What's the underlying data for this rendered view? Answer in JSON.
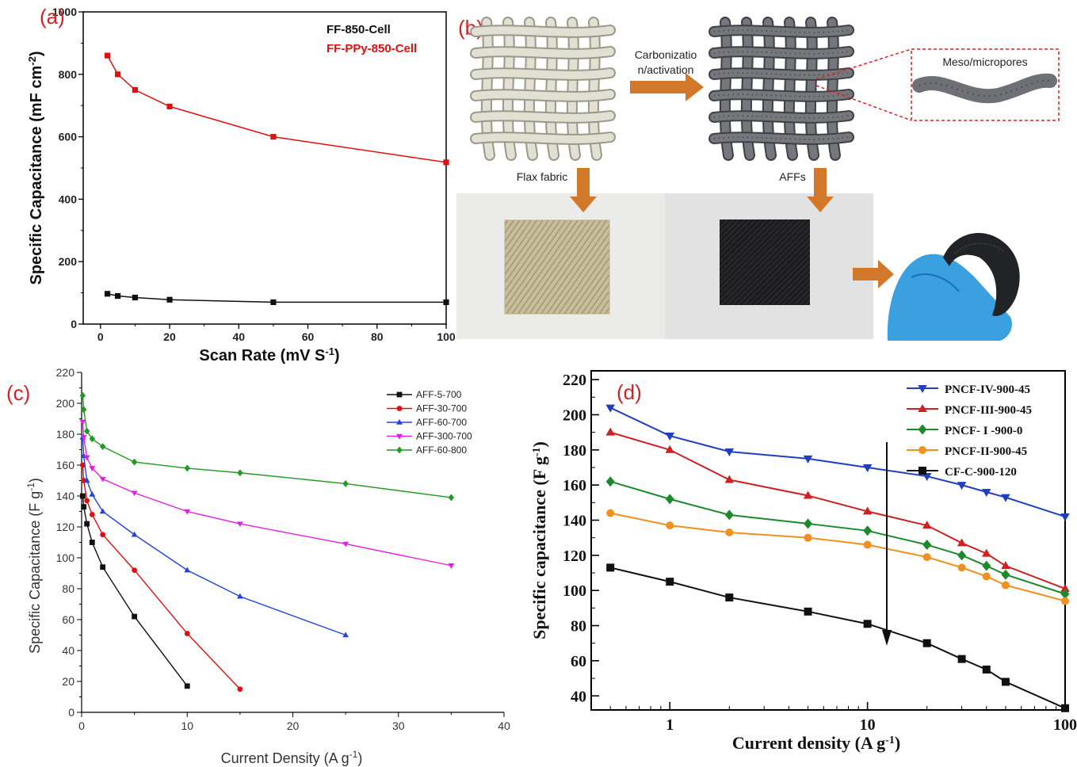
{
  "panels": {
    "a": "(a)",
    "b": "(b)",
    "c": "(c)",
    "d": "(d)"
  },
  "chart_data": [
    {
      "id": "a",
      "type": "line",
      "xlabel": "Scan Rate (mV S",
      "xlabel_sup": "-1",
      "xlabel_tail": ")",
      "ylabel": "Specific Capacitance (mF cm",
      "ylabel_sup": "-2",
      "ylabel_tail": ")",
      "xlim": [
        -5,
        100
      ],
      "ylim": [
        0,
        1000
      ],
      "xticks": [
        0,
        20,
        40,
        60,
        80,
        100
      ],
      "yticks": [
        0,
        200,
        400,
        600,
        800,
        1000
      ],
      "legend_position": "top-right",
      "grid": false,
      "series": [
        {
          "name": "FF-850-Cell",
          "color": "#111111",
          "marker": "square",
          "x": [
            2,
            5,
            10,
            20,
            50,
            100
          ],
          "y": [
            97,
            90,
            85,
            78,
            70,
            70
          ]
        },
        {
          "name": "FF-PPy-850-Cell",
          "color": "#e01010",
          "marker": "square",
          "x": [
            2,
            5,
            10,
            20,
            50,
            100
          ],
          "y": [
            860,
            800,
            750,
            697,
            600,
            518
          ]
        }
      ]
    },
    {
      "id": "c",
      "type": "line",
      "xlabel": "Current Density (A g",
      "xlabel_sup": "-1",
      "xlabel_tail": ")",
      "ylabel": "Specific Capacitance (F g",
      "ylabel_sup": "-1",
      "ylabel_tail": ")",
      "xlim": [
        0,
        40
      ],
      "ylim": [
        0,
        220
      ],
      "xticks": [
        0,
        10,
        20,
        30,
        40
      ],
      "yticks": [
        0,
        20,
        40,
        60,
        80,
        100,
        120,
        140,
        160,
        180,
        200,
        220
      ],
      "legend_position": "top-right",
      "grid": false,
      "series": [
        {
          "name": "AFF-5-700",
          "color": "#111111",
          "marker": "square",
          "x": [
            0.1,
            0.2,
            0.5,
            1,
            2,
            5,
            10
          ],
          "y": [
            140,
            133,
            122,
            110,
            94,
            62,
            17
          ]
        },
        {
          "name": "AFF-30-700",
          "color": "#e01010",
          "marker": "circle",
          "x": [
            0.1,
            0.2,
            0.5,
            1,
            2,
            5,
            10,
            15
          ],
          "y": [
            160,
            150,
            137,
            128,
            115,
            92,
            51,
            15
          ]
        },
        {
          "name": "AFF-60-700",
          "color": "#2244dd",
          "marker": "triangle",
          "x": [
            0.1,
            0.2,
            0.5,
            1,
            2,
            5,
            10,
            15,
            25
          ],
          "y": [
            178,
            166,
            150,
            141,
            130,
            115,
            92,
            75,
            50
          ]
        },
        {
          "name": "AFF-300-700",
          "color": "#e020e0",
          "marker": "triangle-down",
          "x": [
            0.1,
            0.2,
            0.5,
            1,
            2,
            5,
            10,
            15,
            25,
            35
          ],
          "y": [
            188,
            178,
            165,
            158,
            151,
            142,
            130,
            122,
            109,
            95
          ]
        },
        {
          "name": "AFF-60-800",
          "color": "#229922",
          "marker": "diamond",
          "x": [
            0.1,
            0.2,
            0.5,
            1,
            2,
            5,
            10,
            15,
            25,
            35
          ],
          "y": [
            205,
            196,
            182,
            177,
            172,
            162,
            158,
            155,
            148,
            139
          ]
        }
      ]
    },
    {
      "id": "d",
      "type": "line",
      "xscale": "log",
      "xlabel": "Current density (A g",
      "xlabel_sup": "-1",
      "xlabel_tail": ")",
      "ylabel": "Specific capacitance (F g",
      "ylabel_sup": "-1",
      "ylabel_tail": ")",
      "xlim": [
        0.4,
        100
      ],
      "ylim": [
        32,
        225
      ],
      "xticks": [
        1,
        10,
        100
      ],
      "xtick_labels": [
        "1",
        "10",
        "100"
      ],
      "yticks": [
        40,
        60,
        80,
        100,
        120,
        140,
        160,
        180,
        200,
        220
      ],
      "legend_position": "top-right",
      "grid": false,
      "annotation": "downward arrow at about 12 A g-1",
      "series": [
        {
          "name": "PNCF-IV-900-45",
          "color": "#1f3fbf",
          "marker": "triangle-down",
          "x": [
            0.5,
            1,
            2,
            5,
            10,
            20,
            30,
            40,
            50,
            100
          ],
          "y": [
            204,
            188,
            179,
            175,
            170,
            165,
            160,
            156,
            153,
            142
          ]
        },
        {
          "name": "PNCF-III-900-45",
          "color": "#cc2222",
          "marker": "triangle",
          "x": [
            0.5,
            1,
            2,
            5,
            10,
            20,
            30,
            40,
            50,
            100
          ],
          "y": [
            190,
            180,
            163,
            154,
            145,
            137,
            127,
            121,
            114,
            101
          ]
        },
        {
          "name": "PNCF- I -900-0",
          "color": "#1a8a2a",
          "marker": "diamond",
          "x": [
            0.5,
            1,
            2,
            5,
            10,
            20,
            30,
            40,
            50,
            100
          ],
          "y": [
            162,
            152,
            143,
            138,
            134,
            126,
            120,
            114,
            109,
            98
          ]
        },
        {
          "name": "PNCF-II-900-45",
          "color": "#f09020",
          "marker": "circle",
          "x": [
            0.5,
            1,
            2,
            5,
            10,
            20,
            30,
            40,
            50,
            100
          ],
          "y": [
            144,
            137,
            133,
            130,
            126,
            119,
            113,
            108,
            103,
            94
          ]
        },
        {
          "name": "CF-C-900-120",
          "color": "#111111",
          "marker": "square",
          "x": [
            0.5,
            1,
            2,
            5,
            10,
            20,
            30,
            40,
            50,
            100
          ],
          "y": [
            113,
            105,
            96,
            88,
            81,
            70,
            61,
            55,
            48,
            33
          ]
        }
      ]
    }
  ],
  "diagram_b": {
    "step_label_1": "Carbonizatio",
    "step_label_2": "n/activation",
    "pore_label": "Meso/micropores",
    "fabric_label": "Flax fabric",
    "product_label": "AFFs",
    "colors": {
      "arrow": "#d2782a",
      "fabric": "#e2e0d2",
      "activated": "#6e7076",
      "glove": "#3aa0e0",
      "callout": "#dd2222"
    }
  }
}
